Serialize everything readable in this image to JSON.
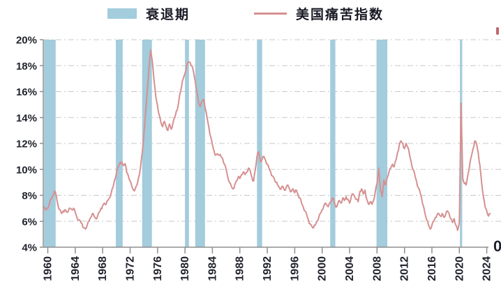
{
  "colors": {
    "recession_band": "#a3ccdc",
    "misery_line": "#d69090",
    "grid": "#c8c8c8",
    "axis": "#8f8f8f",
    "tick_label": "#22242e",
    "legend_text": "#1a1a26",
    "clipped_mark_top_right": "#c06868"
  },
  "decor": {
    "clipped_glyph_bottom_right": "0"
  },
  "chart_data": {
    "type": "line",
    "title": "",
    "legend": [
      {
        "label": "衰退期",
        "marker": "recession-swatch"
      },
      {
        "label": "美国痛苦指数",
        "marker": "line-swatch"
      }
    ],
    "x_range": [
      1959.3,
      2025.8
    ],
    "y_range": [
      4,
      20
    ],
    "grid": "horizontal dash-dot",
    "legend_position": "top-center",
    "y_ticks": [
      {
        "value": 20,
        "label": "20%"
      },
      {
        "value": 18,
        "label": "18%"
      },
      {
        "value": 16,
        "label": "16%"
      },
      {
        "value": 14,
        "label": "14%"
      },
      {
        "value": 12,
        "label": "12%"
      },
      {
        "value": 10,
        "label": "10%"
      },
      {
        "value": 8,
        "label": "8%"
      },
      {
        "value": 6,
        "label": "6%"
      },
      {
        "value": 4,
        "label": "4%"
      }
    ],
    "y_grid_values": [
      6,
      8,
      10,
      12,
      14,
      16,
      18,
      20
    ],
    "x_ticks": [
      "1960",
      "1964",
      "1968",
      "1972",
      "1976",
      "1980",
      "1984",
      "1988",
      "1992",
      "1996",
      "2000",
      "2004",
      "2008",
      "2012",
      "2016",
      "2020",
      "2024"
    ],
    "recession_bands": [
      [
        1959.45,
        1961.15
      ],
      [
        1969.92,
        1970.92
      ],
      [
        1973.75,
        1975.17
      ],
      [
        1980.0,
        1980.58
      ],
      [
        1981.5,
        1982.92
      ],
      [
        1990.5,
        1991.25
      ],
      [
        2001.17,
        2001.92
      ],
      [
        2007.92,
        2009.5
      ],
      [
        2020.08,
        2020.42
      ]
    ],
    "series": [
      {
        "name": "美国痛苦指数",
        "start_year": 1959.5,
        "step_years": 0.25,
        "values": [
          7.1,
          6.9,
          7.0,
          7.4,
          7.7,
          8.0,
          8.35,
          7.9,
          7.2,
          6.9,
          6.6,
          6.8,
          6.9,
          6.7,
          6.8,
          7.0,
          6.9,
          7.0,
          6.7,
          6.3,
          6.1,
          6.0,
          5.8,
          5.5,
          5.4,
          5.7,
          6.0,
          6.3,
          6.6,
          6.4,
          6.2,
          6.4,
          6.7,
          7.0,
          7.2,
          7.4,
          7.3,
          7.6,
          7.8,
          8.2,
          8.6,
          9.2,
          9.7,
          10.2,
          10.5,
          10.6,
          10.3,
          10.45,
          9.8,
          9.5,
          9.1,
          8.7,
          8.4,
          8.5,
          8.8,
          9.4,
          10.1,
          11.2,
          12.6,
          14.3,
          16.0,
          17.8,
          19.2,
          18.3,
          16.8,
          15.6,
          14.9,
          14.2,
          13.6,
          13.3,
          13.7,
          13.3,
          13.0,
          13.5,
          13.1,
          13.6,
          14.0,
          14.5,
          14.9,
          15.8,
          16.4,
          17.0,
          17.4,
          18.0,
          18.3,
          18.25,
          18.0,
          17.5,
          16.8,
          16.0,
          15.1,
          14.85,
          15.25,
          15.4,
          14.6,
          13.9,
          13.2,
          12.5,
          11.9,
          11.4,
          11.1,
          11.2,
          11.1,
          11.0,
          10.8,
          10.4,
          10.0,
          9.4,
          9.0,
          8.7,
          8.5,
          8.8,
          9.1,
          9.4,
          9.3,
          9.6,
          9.8,
          9.6,
          9.8,
          10.1,
          9.9,
          9.4,
          9.1,
          10.0,
          11.0,
          11.35,
          10.6,
          10.8,
          11.0,
          10.7,
          10.4,
          10.1,
          9.8,
          9.5,
          9.3,
          9.0,
          8.8,
          8.6,
          8.5,
          8.7,
          8.4,
          8.6,
          8.8,
          8.5,
          8.3,
          8.5,
          8.2,
          8.4,
          8.0,
          7.8,
          7.4,
          7.1,
          6.8,
          6.5,
          6.1,
          5.8,
          5.6,
          5.5,
          5.7,
          6.0,
          6.3,
          6.6,
          6.9,
          7.2,
          7.4,
          7.2,
          7.3,
          7.5,
          7.8,
          7.5,
          7.1,
          7.3,
          7.6,
          7.4,
          7.8,
          7.6,
          7.9,
          7.7,
          7.4,
          7.9,
          8.1,
          7.9,
          7.7,
          7.5,
          8.3,
          8.5,
          8.1,
          8.4,
          7.7,
          7.3,
          7.5,
          7.3,
          7.6,
          8.3,
          8.9,
          10.1,
          8.4,
          7.9,
          9.2,
          8.8,
          9.4,
          9.8,
          10.1,
          10.4,
          10.2,
          10.7,
          11.3,
          11.9,
          12.2,
          12.0,
          11.6,
          12.0,
          11.7,
          11.1,
          10.5,
          10.0,
          9.6,
          9.1,
          8.6,
          8.3,
          7.8,
          7.2,
          6.6,
          6.1,
          5.7,
          5.4,
          5.7,
          6.0,
          6.3,
          6.5,
          6.6,
          6.4,
          6.6,
          6.3,
          6.5,
          6.8,
          6.6,
          6.2,
          5.9,
          6.2,
          5.7,
          5.3,
          5.9,
          15.1,
          9.3,
          8.9,
          8.8,
          9.6,
          10.3,
          11.0,
          11.6,
          12.2,
          12.0,
          11.3,
          10.3,
          9.0,
          7.9,
          7.1,
          6.8,
          6.4,
          6.6
        ]
      }
    ]
  }
}
